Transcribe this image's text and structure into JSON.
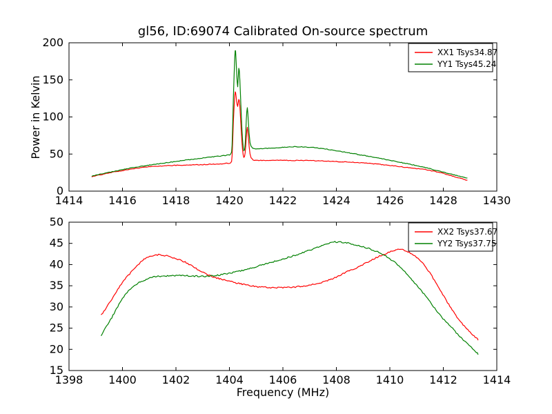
{
  "figure": {
    "background": "#ffffff"
  },
  "chart_data": [
    {
      "type": "line",
      "title": "gl56, ID:69074 Calibrated On-source spectrum",
      "xlabel": "",
      "ylabel": "Power in Kelvin",
      "xlim": [
        1414,
        1430
      ],
      "ylim": [
        0,
        200
      ],
      "xticks": [
        1414,
        1416,
        1418,
        1420,
        1422,
        1424,
        1426,
        1428,
        1430
      ],
      "yticks": [
        0,
        50,
        100,
        150,
        200
      ],
      "grid": false,
      "legend_position": "upper-right",
      "series": [
        {
          "name": "XX1",
          "legend_label": "XX1 Tsys34.87",
          "color": "#ff0000",
          "noise_k": 0.45,
          "points": [
            [
              1414.85,
              19.5
            ],
            [
              1415.3,
              23
            ],
            [
              1415.8,
              26.5
            ],
            [
              1416.3,
              29.5
            ],
            [
              1416.8,
              32
            ],
            [
              1417.3,
              33.6
            ],
            [
              1418,
              34.8
            ],
            [
              1418.7,
              35.5
            ],
            [
              1419.4,
              36.3
            ],
            [
              1419.9,
              37.5
            ],
            [
              1420.05,
              38.5
            ],
            [
              1420.1,
              48
            ],
            [
              1420.15,
              95
            ],
            [
              1420.2,
              129
            ],
            [
              1420.23,
              133
            ],
            [
              1420.27,
              121
            ],
            [
              1420.31,
              114
            ],
            [
              1420.35,
              124
            ],
            [
              1420.39,
              115
            ],
            [
              1420.44,
              82
            ],
            [
              1420.49,
              56
            ],
            [
              1420.54,
              45.5
            ],
            [
              1420.59,
              52
            ],
            [
              1420.63,
              72
            ],
            [
              1420.67,
              86
            ],
            [
              1420.71,
              72
            ],
            [
              1420.77,
              50
            ],
            [
              1420.86,
              43
            ],
            [
              1421,
              41.5
            ],
            [
              1421.7,
              41.6
            ],
            [
              1422.5,
              41.3
            ],
            [
              1423.2,
              41
            ],
            [
              1424,
              39.9
            ],
            [
              1424.7,
              38.7
            ],
            [
              1425.3,
              37.2
            ],
            [
              1426,
              34.6
            ],
            [
              1426.7,
              31.6
            ],
            [
              1427.3,
              29.2
            ],
            [
              1428,
              23.8
            ],
            [
              1428.5,
              18.8
            ],
            [
              1428.9,
              14.5
            ]
          ]
        },
        {
          "name": "YY1",
          "legend_label": "YY1 Tsys45.24",
          "color": "#008000",
          "noise_k": 0.45,
          "points": [
            [
              1414.85,
              20
            ],
            [
              1415.3,
              24
            ],
            [
              1415.8,
              27.5
            ],
            [
              1416.3,
              31
            ],
            [
              1416.8,
              34
            ],
            [
              1417.3,
              36.6
            ],
            [
              1418,
              40
            ],
            [
              1418.7,
              43.3
            ],
            [
              1419.4,
              46.3
            ],
            [
              1419.9,
              48.5
            ],
            [
              1420.05,
              50.5
            ],
            [
              1420.1,
              62
            ],
            [
              1420.15,
              128
            ],
            [
              1420.2,
              180
            ],
            [
              1420.23,
              189
            ],
            [
              1420.27,
              160
            ],
            [
              1420.31,
              141
            ],
            [
              1420.35,
              166
            ],
            [
              1420.39,
              150
            ],
            [
              1420.44,
              105
            ],
            [
              1420.49,
              70
            ],
            [
              1420.54,
              54
            ],
            [
              1420.59,
              64
            ],
            [
              1420.63,
              95
            ],
            [
              1420.67,
              112
            ],
            [
              1420.71,
              92
            ],
            [
              1420.77,
              65
            ],
            [
              1420.86,
              58.5
            ],
            [
              1421,
              57.2
            ],
            [
              1421.7,
              58.2
            ],
            [
              1422.3,
              59.8
            ],
            [
              1423,
              59.2
            ],
            [
              1423.6,
              56.8
            ],
            [
              1424.2,
              53.3
            ],
            [
              1424.8,
              49.5
            ],
            [
              1425.4,
              45.8
            ],
            [
              1426,
              41.5
            ],
            [
              1426.7,
              36.6
            ],
            [
              1427.3,
              32
            ],
            [
              1428,
              25.5
            ],
            [
              1428.5,
              21
            ],
            [
              1428.9,
              17.5
            ]
          ]
        }
      ]
    },
    {
      "type": "line",
      "title": "",
      "xlabel": "Frequency (MHz)",
      "ylabel": "",
      "xlim": [
        1398,
        1414
      ],
      "ylim": [
        15,
        50
      ],
      "xticks": [
        1398,
        1400,
        1402,
        1404,
        1406,
        1408,
        1410,
        1412,
        1414
      ],
      "yticks": [
        15,
        20,
        25,
        30,
        35,
        40,
        45,
        50
      ],
      "grid": false,
      "legend_position": "upper-right",
      "series": [
        {
          "name": "XX2",
          "legend_label": "XX2 Tsys37.67",
          "color": "#ff0000",
          "noise_k": 0.16,
          "points": [
            [
              1399.2,
              28
            ],
            [
              1399.6,
              31.8
            ],
            [
              1400,
              35.8
            ],
            [
              1400.4,
              38.7
            ],
            [
              1400.8,
              41.2
            ],
            [
              1401.1,
              42.1
            ],
            [
              1401.4,
              42.3
            ],
            [
              1401.8,
              41.8
            ],
            [
              1402.3,
              40.7
            ],
            [
              1402.8,
              38.9
            ],
            [
              1403.3,
              37.3
            ],
            [
              1403.8,
              36.4
            ],
            [
              1404.3,
              35.6
            ],
            [
              1404.8,
              35
            ],
            [
              1405.4,
              34.6
            ],
            [
              1406,
              34.6
            ],
            [
              1406.6,
              34.8
            ],
            [
              1407.2,
              35.4
            ],
            [
              1407.8,
              36.5
            ],
            [
              1408.3,
              38
            ],
            [
              1408.8,
              39.4
            ],
            [
              1409.3,
              41
            ],
            [
              1409.8,
              42.5
            ],
            [
              1410.3,
              43.5
            ],
            [
              1410.6,
              43.2
            ],
            [
              1411,
              41.7
            ],
            [
              1411.4,
              38.9
            ],
            [
              1411.8,
              34.9
            ],
            [
              1412.2,
              30.6
            ],
            [
              1412.6,
              26.9
            ],
            [
              1413,
              24
            ],
            [
              1413.3,
              22.3
            ]
          ]
        },
        {
          "name": "YY2",
          "legend_label": "YY2 Tsys37.75",
          "color": "#008000",
          "noise_k": 0.16,
          "points": [
            [
              1399.2,
              23.3
            ],
            [
              1399.6,
              27.5
            ],
            [
              1400,
              32
            ],
            [
              1400.4,
              34.8
            ],
            [
              1400.8,
              36.3
            ],
            [
              1401.2,
              37.1
            ],
            [
              1401.6,
              37.3
            ],
            [
              1402.1,
              37.4
            ],
            [
              1402.6,
              37.3
            ],
            [
              1403.1,
              37.2
            ],
            [
              1403.6,
              37.5
            ],
            [
              1404.1,
              38.1
            ],
            [
              1404.6,
              38.8
            ],
            [
              1405.1,
              39.7
            ],
            [
              1405.6,
              40.6
            ],
            [
              1406.1,
              41.5
            ],
            [
              1406.6,
              42.5
            ],
            [
              1407.1,
              43.6
            ],
            [
              1407.5,
              44.5
            ],
            [
              1407.9,
              45.3
            ],
            [
              1408.3,
              45.2
            ],
            [
              1408.7,
              44.7
            ],
            [
              1409.1,
              44
            ],
            [
              1409.5,
              43.1
            ],
            [
              1409.9,
              41.8
            ],
            [
              1410.3,
              39.9
            ],
            [
              1410.7,
              37.3
            ],
            [
              1411.1,
              34.4
            ],
            [
              1411.5,
              31.2
            ],
            [
              1411.9,
              27.9
            ],
            [
              1412.3,
              25.2
            ],
            [
              1412.7,
              22.5
            ],
            [
              1413,
              20.7
            ],
            [
              1413.3,
              18.9
            ]
          ]
        }
      ]
    }
  ]
}
